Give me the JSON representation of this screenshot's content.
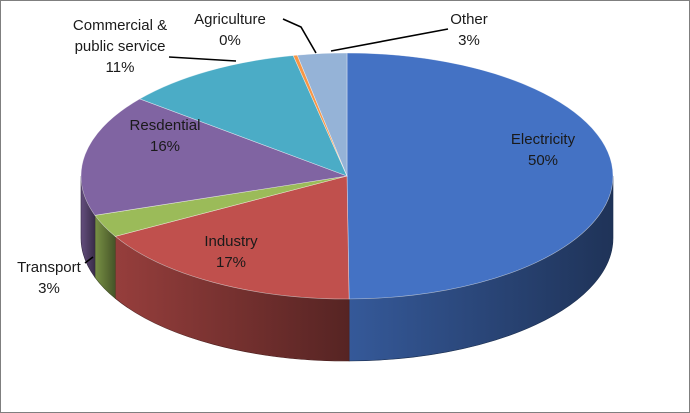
{
  "chart_data": {
    "type": "pie",
    "style": "3d",
    "legend": "none",
    "slices": [
      {
        "label": "Electricity",
        "value": 50,
        "value_text": "50%",
        "color": "#4472C4"
      },
      {
        "label": "Industry",
        "value": 17,
        "value_text": "17%",
        "color": "#C0504D"
      },
      {
        "label": "Transport",
        "value": 3,
        "value_text": "3%",
        "color": "#9BBB59"
      },
      {
        "label": "Resdential",
        "value": 16,
        "value_text": "16%",
        "color": "#8064A2"
      },
      {
        "label": "Commercial & public service",
        "value": 11,
        "value_text": "11%",
        "color": "#4BACC6"
      },
      {
        "label": "Agriculture",
        "value": 0,
        "value_text": "0%",
        "color": "#F79646"
      },
      {
        "label": "Other",
        "value": 3,
        "value_text": "3%",
        "color": "#95B3D7"
      }
    ]
  }
}
